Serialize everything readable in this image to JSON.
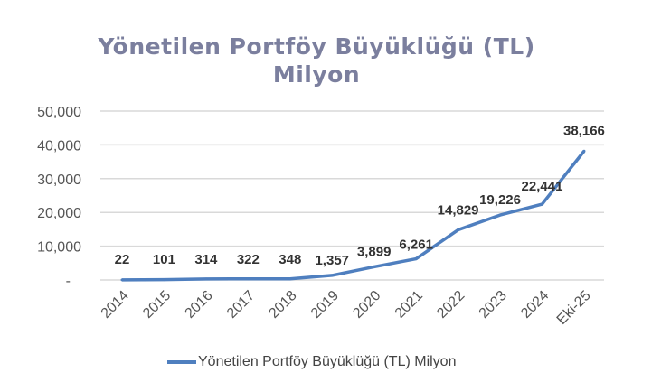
{
  "chart_data": {
    "type": "line",
    "title": "Yönetilen Portföy Büyüklüğü (TL)",
    "subtitle": "Milyon",
    "categories": [
      "2014",
      "2015",
      "2016",
      "2017",
      "2018",
      "2019",
      "2020",
      "2021",
      "2022",
      "2023",
      "2024",
      "Eki-25"
    ],
    "series": [
      {
        "name": "Yönetilen Portföy Büyüklüğü (TL) Milyon",
        "values": [
          22,
          101,
          314,
          322,
          348,
          1357,
          3899,
          6261,
          14829,
          19226,
          22441,
          38166
        ],
        "color": "#4f7fbf"
      }
    ],
    "data_labels": [
      "22",
      "101",
      "314",
      "322",
      "348",
      "1,357",
      "3,899",
      "6,261",
      "14,829",
      "19,226",
      "22,441",
      "38,166"
    ],
    "yticks": [
      {
        "value": 0,
        "label": "-"
      },
      {
        "value": 10000,
        "label": "10,000"
      },
      {
        "value": 20000,
        "label": "20,000"
      },
      {
        "value": 30000,
        "label": "30,000"
      },
      {
        "value": 40000,
        "label": "40,000"
      },
      {
        "value": 50000,
        "label": "50,000"
      }
    ],
    "ylim": [
      0,
      50000
    ],
    "grid": true,
    "legend": "bottom"
  }
}
